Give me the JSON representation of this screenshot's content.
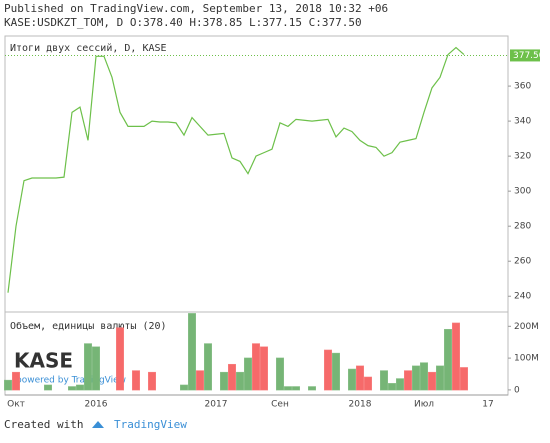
{
  "header": {
    "published": "Published on TradingView.com, September 13, 2018 10:32 +06",
    "symbol_line": "KASE:USDKZT_TOM, D O:378.40 H:378.85 L:377.15 C:377.50"
  },
  "footer": {
    "created": "Created with",
    "brand": "TradingView"
  },
  "logo": {
    "text": "KASE",
    "powered": "powered by TradingView"
  },
  "chart_data": [
    {
      "type": "line",
      "title": "Итоги двух сессий, D, KASE",
      "color": "#6dc04a",
      "categories": [
        null,
        "Окт",
        null,
        null,
        null,
        null,
        null,
        null,
        null,
        null,
        null,
        "2016",
        null,
        null,
        null,
        null,
        null,
        null,
        null,
        null,
        null,
        null,
        null,
        null,
        null,
        null,
        "2017",
        null,
        null,
        null,
        null,
        null,
        null,
        null,
        "Сен",
        null,
        null,
        null,
        null,
        null,
        null,
        null,
        null,
        null,
        "2018",
        null,
        null,
        null,
        null,
        null,
        null,
        null,
        "Июл",
        null,
        null,
        null,
        null,
        null,
        null,
        null,
        "17"
      ],
      "values": [
        242,
        280,
        306,
        307.5,
        307.5,
        307.5,
        307.5,
        308,
        345,
        348,
        329,
        377,
        377,
        365,
        345,
        337,
        337,
        337,
        340,
        339.5,
        339.5,
        339,
        332,
        342,
        337,
        332,
        332.5,
        333,
        319,
        317,
        310,
        320,
        322,
        324,
        339,
        337,
        341,
        340.5,
        340,
        340.5,
        341,
        331,
        336,
        334,
        329,
        326,
        325,
        320,
        322,
        328,
        329,
        330,
        345,
        359,
        365,
        378,
        382,
        378,
        null,
        null,
        null
      ],
      "last_price": 377.5,
      "last_price_label": "377.50",
      "ylim": [
        231,
        388.6
      ],
      "yticks": [
        240,
        260,
        280,
        300,
        320,
        340,
        360
      ]
    },
    {
      "type": "bar",
      "title": "Объем, единицы валюты (20)",
      "values": [
        30000000,
        55000000,
        null,
        null,
        null,
        15000000,
        null,
        null,
        10000000,
        15000000,
        145000000,
        135000000,
        null,
        null,
        195000000,
        null,
        60000000,
        null,
        55000000,
        null,
        null,
        null,
        15000000,
        240000000,
        60000000,
        145000000,
        null,
        55000000,
        80000000,
        55000000,
        100000000,
        145000000,
        135000000,
        null,
        100000000,
        10000000,
        10000000,
        null,
        10000000,
        null,
        125000000,
        115000000,
        null,
        65000000,
        75000000,
        40000000,
        null,
        60000000,
        20000000,
        35000000,
        60000000,
        75000000,
        85000000,
        55000000,
        75000000,
        190000000,
        210000000,
        70000000,
        null,
        null,
        null
      ],
      "colors": [
        "#76b576",
        "#f66a6a",
        null,
        null,
        null,
        "#76b576",
        null,
        null,
        "#76b576",
        "#76b576",
        "#76b576",
        "#76b576",
        null,
        null,
        "#f66a6a",
        null,
        "#f66a6a",
        null,
        "#f66a6a",
        null,
        null,
        null,
        "#76b576",
        "#76b576",
        "#f66a6a",
        "#76b576",
        null,
        "#76b576",
        "#f66a6a",
        "#76b576",
        "#76b576",
        "#f66a6a",
        "#f66a6a",
        null,
        "#76b576",
        "#76b576",
        "#76b576",
        null,
        "#76b576",
        null,
        "#f66a6a",
        "#76b576",
        null,
        "#76b576",
        "#f66a6a",
        "#f66a6a",
        null,
        "#76b576",
        "#76b576",
        "#76b576",
        "#f66a6a",
        "#76b576",
        "#76b576",
        "#f66a6a",
        "#76b576",
        "#76b576",
        "#f66a6a",
        "#f66a6a",
        null,
        null,
        null
      ],
      "ylim": [
        -16000000,
        245000000
      ],
      "yticks": [
        0,
        {
          "value": 100000000,
          "label": "100M"
        },
        {
          "value": 200000000,
          "label": "200M"
        }
      ]
    }
  ]
}
